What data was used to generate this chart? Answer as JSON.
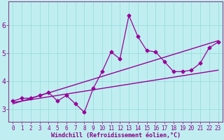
{
  "title": "",
  "xlabel": "Windchill (Refroidissement éolien,°C)",
  "ylabel": "",
  "background_color": "#c0eef0",
  "line_color": "#990099",
  "grid_color": "#99dddd",
  "text_color": "#880088",
  "axis_color": "#884488",
  "x_data": [
    0,
    1,
    2,
    3,
    4,
    5,
    6,
    7,
    8,
    9,
    10,
    11,
    12,
    13,
    14,
    15,
    16,
    17,
    18,
    19,
    20,
    21,
    22,
    23
  ],
  "y_data": [
    3.3,
    3.4,
    3.4,
    3.5,
    3.6,
    3.3,
    3.5,
    3.2,
    2.9,
    3.75,
    4.35,
    5.05,
    4.8,
    6.35,
    5.6,
    5.1,
    5.05,
    4.7,
    4.35,
    4.35,
    4.4,
    4.65,
    5.2,
    5.4
  ],
  "trend1_x": [
    0,
    23
  ],
  "trend1_y": [
    3.2,
    5.45
  ],
  "trend2_x": [
    0,
    23
  ],
  "trend2_y": [
    3.25,
    4.4
  ],
  "xlim": [
    -0.5,
    23.5
  ],
  "ylim": [
    2.55,
    6.85
  ],
  "xticks": [
    0,
    1,
    2,
    3,
    4,
    5,
    6,
    7,
    8,
    9,
    10,
    11,
    12,
    13,
    14,
    15,
    16,
    17,
    18,
    19,
    20,
    21,
    22,
    23
  ],
  "yticks": [
    3,
    4,
    5,
    6
  ],
  "tick_fontsize": 5.5,
  "xlabel_fontsize": 6.0
}
